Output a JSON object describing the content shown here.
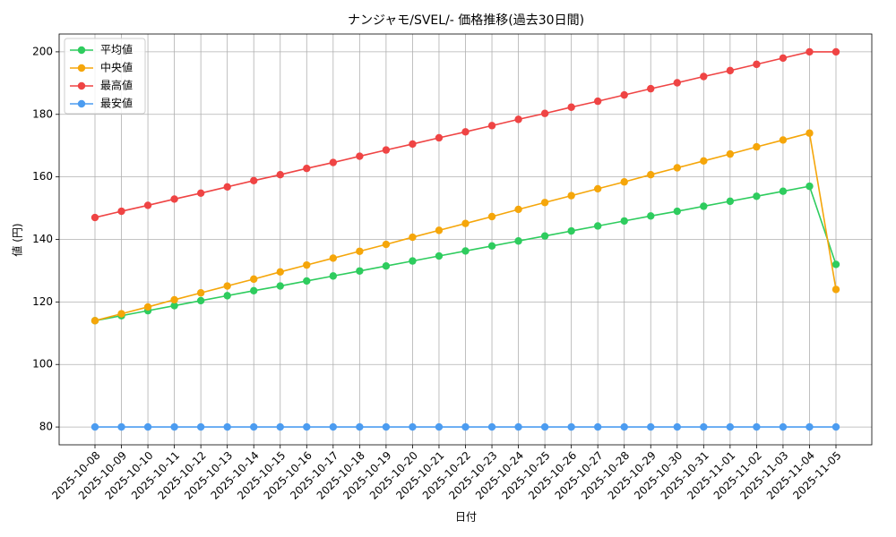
{
  "chart_data": {
    "type": "line",
    "title": "ナンジャモ/SVEL/- 価格推移(過去30日間)",
    "xlabel": "日付",
    "ylabel": "値 (円)",
    "categories": [
      "2025-10-08",
      "2025-10-09",
      "2025-10-10",
      "2025-10-11",
      "2025-10-12",
      "2025-10-13",
      "2025-10-14",
      "2025-10-15",
      "2025-10-16",
      "2025-10-17",
      "2025-10-18",
      "2025-10-19",
      "2025-10-20",
      "2025-10-21",
      "2025-10-22",
      "2025-10-23",
      "2025-10-24",
      "2025-10-25",
      "2025-10-26",
      "2025-10-27",
      "2025-10-28",
      "2025-10-29",
      "2025-10-30",
      "2025-10-31",
      "2025-11-01",
      "2025-11-02",
      "2025-11-03",
      "2025-11-04",
      "2025-11-05"
    ],
    "series": [
      {
        "name": "平均値",
        "color": "#2ecc5e",
        "values": [
          114,
          115.6,
          117.2,
          118.8,
          120.4,
          122,
          123.6,
          125.1,
          126.7,
          128.3,
          129.9,
          131.5,
          133.1,
          134.7,
          136.3,
          137.9,
          139.5,
          141.1,
          142.7,
          144.3,
          145.9,
          147.5,
          149,
          150.6,
          152.2,
          153.8,
          155.4,
          157,
          132
        ]
      },
      {
        "name": "中央値",
        "color": "#f5a60a",
        "values": [
          114,
          116.2,
          118.4,
          120.7,
          122.9,
          125.1,
          127.3,
          129.6,
          131.8,
          134,
          136.2,
          138.4,
          140.7,
          142.9,
          145.1,
          147.3,
          149.6,
          151.8,
          154,
          156.2,
          158.4,
          160.7,
          162.9,
          165.1,
          167.3,
          169.6,
          171.8,
          174,
          124
        ]
      },
      {
        "name": "最高値",
        "color": "#ef4444",
        "values": [
          147,
          149,
          150.9,
          152.9,
          154.8,
          156.8,
          158.8,
          160.7,
          162.7,
          164.6,
          166.6,
          168.6,
          170.5,
          172.5,
          174.4,
          176.4,
          178.4,
          180.3,
          182.3,
          184.2,
          186.2,
          188.2,
          190.1,
          192.1,
          194,
          196,
          198,
          200,
          200
        ]
      },
      {
        "name": "最安値",
        "color": "#4c9cf0",
        "values": [
          80,
          80,
          80,
          80,
          80,
          80,
          80,
          80,
          80,
          80,
          80,
          80,
          80,
          80,
          80,
          80,
          80,
          80,
          80,
          80,
          80,
          80,
          80,
          80,
          80,
          80,
          80,
          80,
          80
        ]
      }
    ],
    "ylim": [
      74.3,
      205.7
    ],
    "yticks": [
      80,
      100,
      120,
      140,
      160,
      180,
      200
    ],
    "grid": true,
    "legend": "upper left"
  }
}
